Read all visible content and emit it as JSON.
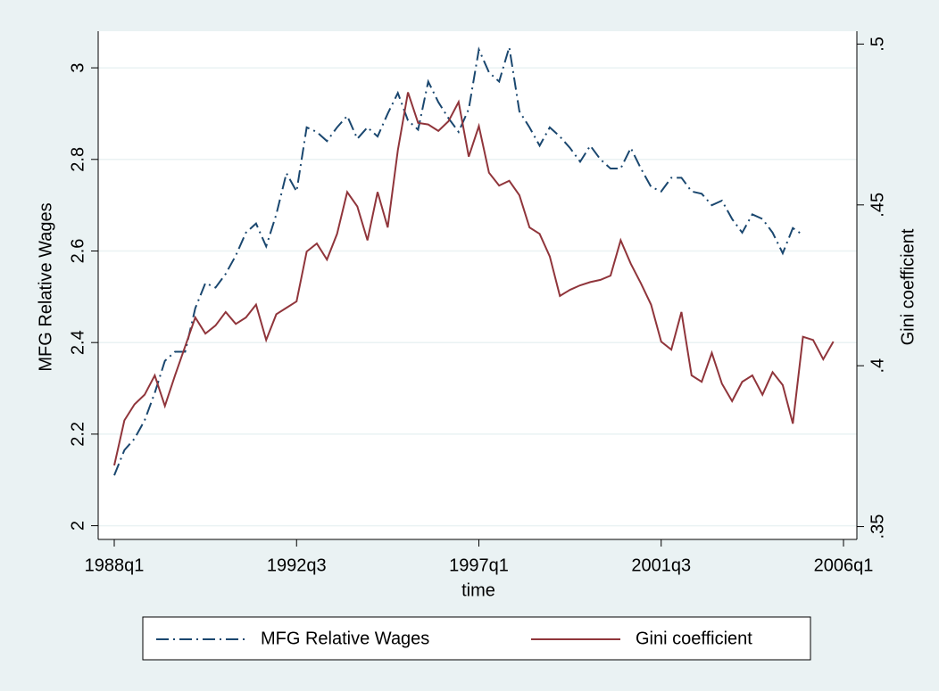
{
  "chart_data": {
    "type": "line",
    "xlabel": "time",
    "ylabel": "MFG Relative Wages",
    "y2label": "Gini coefficient",
    "x": [
      "1988q1",
      "1988q2",
      "1988q3",
      "1988q4",
      "1989q1",
      "1989q2",
      "1989q3",
      "1989q4",
      "1990q1",
      "1990q2",
      "1990q3",
      "1990q4",
      "1991q1",
      "1991q2",
      "1991q3",
      "1991q4",
      "1992q1",
      "1992q2",
      "1992q3",
      "1992q4",
      "1993q1",
      "1993q2",
      "1993q3",
      "1993q4",
      "1994q1",
      "1994q2",
      "1994q3",
      "1994q4",
      "1995q1",
      "1995q2",
      "1995q3",
      "1995q4",
      "1996q1",
      "1996q2",
      "1996q3",
      "1996q4",
      "1997q1",
      "1997q2",
      "1997q3",
      "1997q4",
      "1998q1",
      "1998q2",
      "1998q3",
      "1998q4",
      "1999q1",
      "1999q2",
      "1999q3",
      "1999q4",
      "2000q1",
      "2000q2",
      "2000q3",
      "2000q4",
      "2001q1",
      "2001q2",
      "2001q3",
      "2001q4",
      "2002q1",
      "2002q2",
      "2002q3",
      "2002q4",
      "2003q1",
      "2003q2",
      "2003q3",
      "2003q4",
      "2004q1",
      "2004q2",
      "2004q3",
      "2004q4",
      "2005q1",
      "2005q2",
      "2005q3",
      "2005q4"
    ],
    "series": [
      {
        "name": "MFG Relative Wages",
        "color": "#1a476f",
        "style": "dash-dot",
        "axis": "y",
        "values": [
          2.11,
          2.165,
          2.19,
          2.23,
          2.29,
          2.36,
          2.38,
          2.38,
          2.475,
          2.53,
          2.52,
          2.55,
          2.59,
          2.64,
          2.66,
          2.61,
          2.68,
          2.77,
          2.73,
          2.87,
          2.86,
          2.84,
          2.87,
          2.895,
          2.845,
          2.87,
          2.85,
          2.9,
          2.945,
          2.885,
          2.865,
          2.97,
          2.925,
          2.89,
          2.86,
          2.91,
          3.04,
          2.99,
          2.97,
          3.045,
          2.905,
          2.87,
          2.83,
          2.87,
          2.85,
          2.825,
          2.795,
          2.83,
          2.8,
          2.78,
          2.78,
          2.825,
          2.78,
          2.74,
          2.73,
          2.76,
          2.76,
          2.73,
          2.725,
          2.7,
          2.71,
          2.67,
          2.64,
          2.68,
          2.67,
          2.64,
          2.595,
          2.65,
          2.635,
          null,
          null,
          null
        ]
      },
      {
        "name": "Gini coefficient",
        "color": "#90353b",
        "style": "solid",
        "axis": "y2",
        "values": [
          0.369,
          0.383,
          0.388,
          0.391,
          0.397,
          0.3875,
          0.397,
          0.406,
          0.415,
          0.41,
          0.4125,
          0.4167,
          0.413,
          0.415,
          0.419,
          0.408,
          0.416,
          0.418,
          0.42,
          0.4355,
          0.438,
          0.433,
          0.441,
          0.454,
          0.4495,
          0.439,
          0.454,
          0.443,
          0.467,
          0.485,
          0.4755,
          0.475,
          0.473,
          0.476,
          0.482,
          0.465,
          0.4745,
          0.46,
          0.456,
          0.4575,
          0.453,
          0.443,
          0.441,
          0.434,
          0.4217,
          0.4236,
          0.425,
          0.426,
          0.4267,
          0.428,
          0.439,
          0.4317,
          0.4256,
          0.419,
          0.4075,
          0.405,
          0.4167,
          0.397,
          0.395,
          0.404,
          0.3944,
          0.389,
          0.395,
          0.397,
          0.391,
          0.398,
          0.394,
          0.382,
          0.409,
          0.408,
          0.402,
          0.4075
        ]
      }
    ],
    "xlim": [
      "1988q1",
      "2006q1"
    ],
    "xticks": [
      "1988q1",
      "1992q3",
      "1997q1",
      "2001q3",
      "2006q1"
    ],
    "ylim": [
      1.97,
      3.08
    ],
    "yticks": [
      2,
      2.2,
      2.4,
      2.6,
      2.8,
      3
    ],
    "y2lim": [
      0.346,
      0.504
    ],
    "y2ticks": [
      {
        "value": 0.35,
        "label": ".35"
      },
      {
        "value": 0.4,
        "label": ".4"
      },
      {
        "value": 0.45,
        "label": ".45"
      },
      {
        "value": 0.5,
        "label": ".5"
      }
    ],
    "grid": true,
    "legend": "bottom"
  }
}
